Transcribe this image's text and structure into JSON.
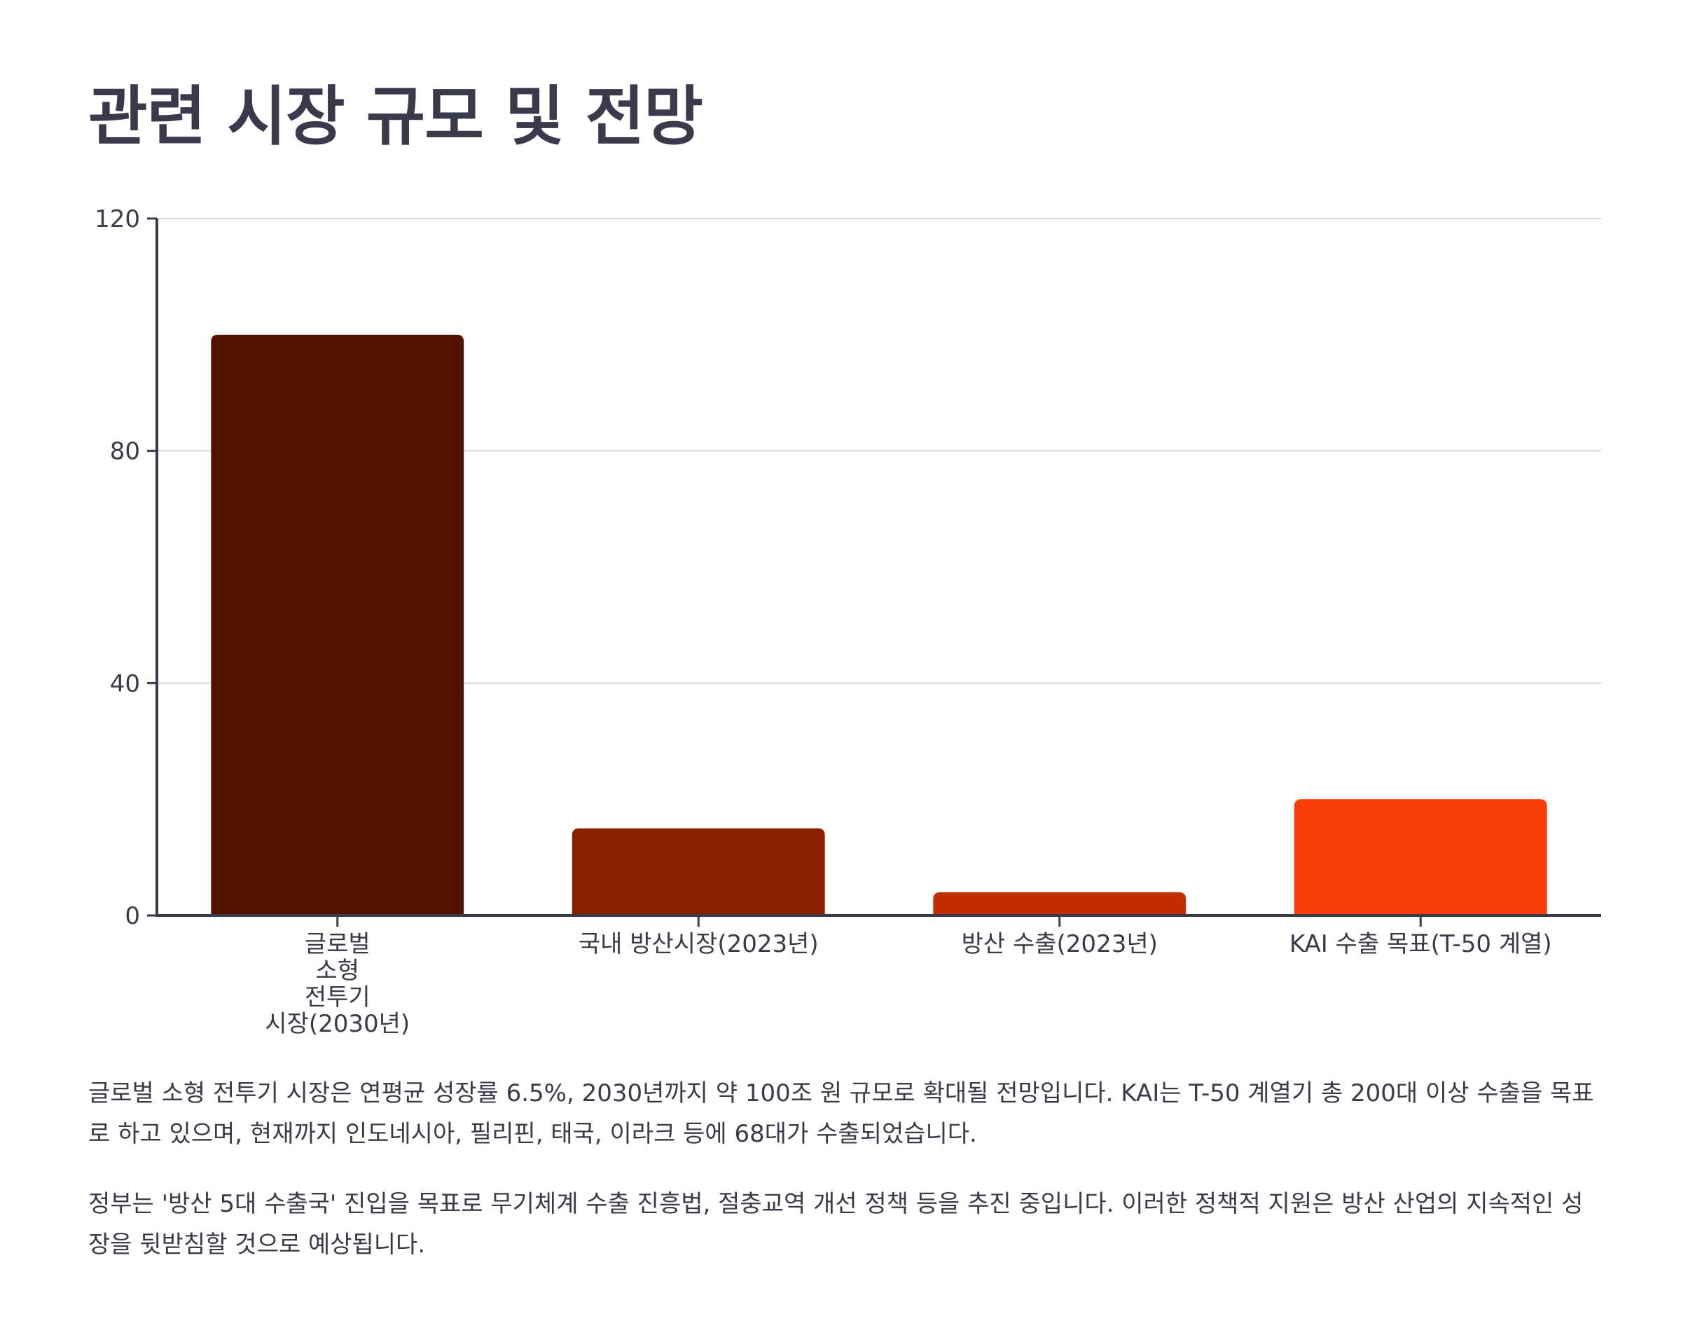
{
  "page": {
    "title": "관련 시장 규모 및 전망"
  },
  "chart_data": {
    "type": "bar",
    "title": "",
    "xlabel": "",
    "ylabel": "",
    "categories": [
      "글로벌\n소형\n전투기\n시장(2030년)",
      "국내 방산시장(2023년)",
      "방산 수출(2023년)",
      "KAI 수출 목표(T-50 계열)"
    ],
    "values": [
      100,
      15,
      4,
      20
    ],
    "colors": [
      "#521400",
      "#8a1f00",
      "#c22e00",
      "#f53d05"
    ],
    "ylim": [
      0,
      120
    ],
    "yticks": [
      0,
      40,
      80,
      120
    ],
    "ytick_labels": [
      "0",
      "40",
      "80",
      "120"
    ],
    "grid": true,
    "legend": "none"
  },
  "paragraphs": [
    "글로벌 소형 전투기 시장은 연평균 성장률 6.5%, 2030년까지 약 100조 원 규모로 확대될 전망입니다. KAI는 T-50 계열기 총 200대 이상 수출을 목표로 하고 있으며, 현재까지 인도네시아, 필리핀, 태국, 이라크 등에 68대가 수출되었습니다.",
    "정부는 '방산 5대 수출국' 진입을 목표로 무기체계 수출 진흥법, 절충교역 개선 정책 등을 추진 중입니다. 이러한 정책적 지원은 방산 산업의 지속적인 성장을 뒷받침할 것으로 예상됩니다."
  ]
}
